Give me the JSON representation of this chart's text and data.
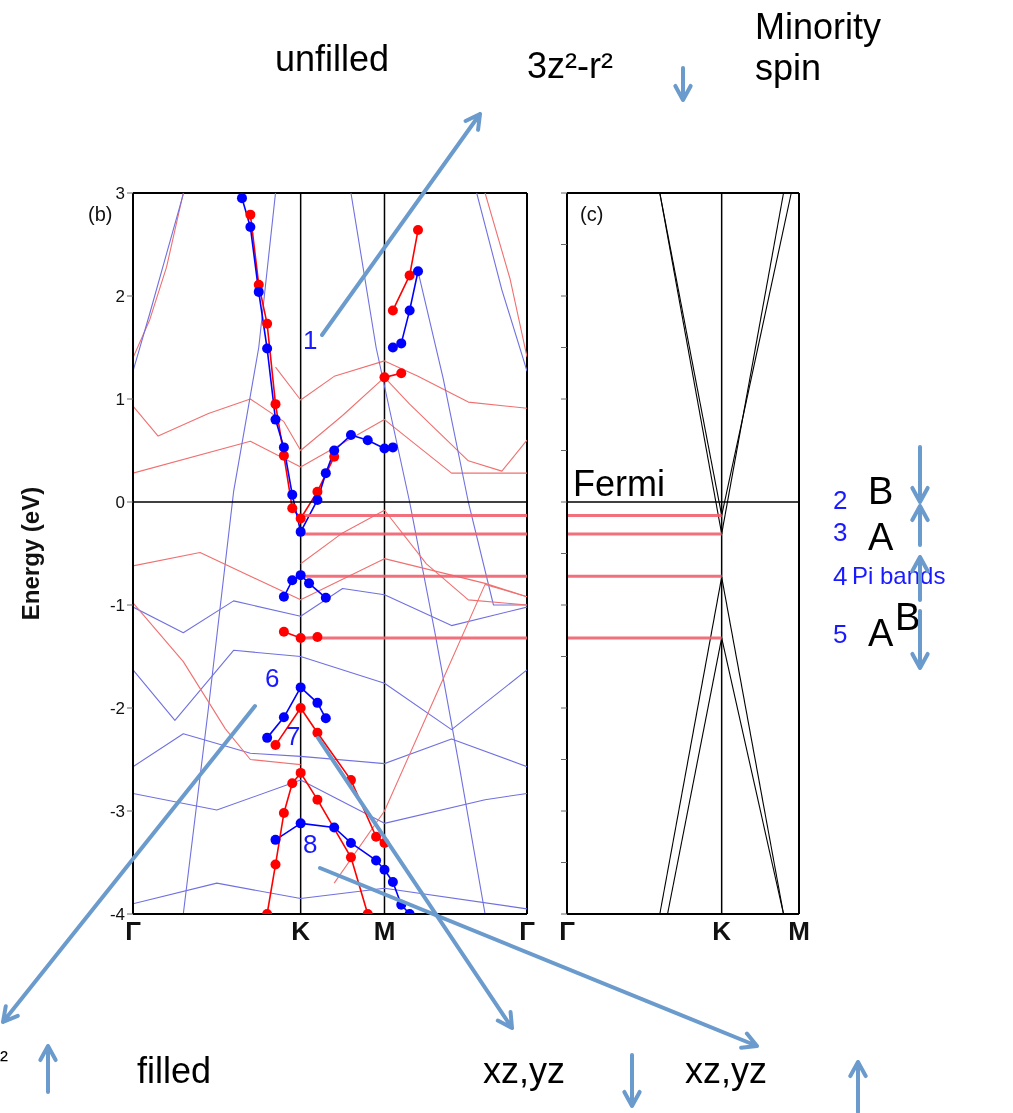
{
  "chart_data": [
    {
      "type": "line",
      "title": "(b)",
      "ylabel": "Energy (eV)",
      "categories": [
        "Γ",
        null,
        null,
        null,
        null,
        null,
        null,
        null,
        null,
        null,
        null,
        null,
        null,
        null,
        null,
        null,
        null,
        null,
        null,
        null,
        "K",
        null,
        null,
        null,
        null,
        null,
        null,
        null,
        null,
        null,
        "M",
        null,
        null,
        null,
        null,
        null,
        null,
        null,
        null,
        null,
        null,
        null,
        null,
        null,
        null,
        null,
        null,
        "Γ"
      ],
      "ylim": [
        -4,
        3
      ],
      "yticks": [
        -4,
        -3,
        -2,
        -1,
        0,
        1,
        2,
        3
      ],
      "grid": "x",
      "ref_lines": [
        {
          "axis": "y",
          "value": 0
        },
        {
          "axis": "y",
          "value": -0.13,
          "color": "#f0606e"
        },
        {
          "axis": "y",
          "value": -0.31,
          "color": "#f0606e"
        },
        {
          "axis": "y",
          "value": -0.72,
          "color": "#f0606e"
        },
        {
          "axis": "y",
          "value": -1.32,
          "color": "#f0606e"
        }
      ],
      "series": [
        {
          "color": "#f07070",
          "values": [
            1.4,
            null,
            1.77,
            null,
            2.28,
            null,
            3,
            null,
            null,
            null,
            null,
            null,
            null,
            null,
            null,
            null,
            null,
            null,
            null,
            null,
            null,
            null,
            null,
            null,
            null,
            null,
            null,
            null,
            null,
            null,
            null,
            null,
            null,
            null,
            null,
            null,
            null,
            null,
            null,
            null,
            null,
            null,
            null,
            null,
            null,
            null,
            null,
            null
          ]
        },
        {
          "color": "#f07070",
          "values": [
            null,
            null,
            null,
            null,
            null,
            null,
            null,
            null,
            null,
            null,
            null,
            null,
            null,
            null,
            null,
            null,
            null,
            null,
            null,
            null,
            null,
            null,
            null,
            null,
            null,
            null,
            null,
            null,
            null,
            null,
            null,
            null,
            null,
            null,
            null,
            null,
            null,
            null,
            null,
            null,
            null,
            null,
            3,
            null,
            null,
            2.16,
            null,
            1.41
          ]
        },
        {
          "color": "#7070e0",
          "values": [
            1.27,
            null,
            1.83,
            null,
            null,
            null,
            2.99,
            null,
            null,
            null,
            null,
            null,
            null,
            null,
            null,
            null,
            null,
            null,
            null,
            null,
            null,
            null,
            null,
            null,
            null,
            null,
            null,
            null,
            null,
            null,
            null,
            null,
            null,
            null,
            null,
            null,
            null,
            null,
            null,
            null,
            null,
            null,
            null,
            null,
            null,
            null,
            null,
            null
          ]
        },
        {
          "color": "#7070e0",
          "values": [
            null,
            null,
            null,
            null,
            null,
            null,
            null,
            null,
            null,
            null,
            null,
            null,
            null,
            null,
            null,
            null,
            null,
            null,
            null,
            null,
            null,
            null,
            null,
            null,
            null,
            null,
            null,
            null,
            null,
            null,
            null,
            null,
            null,
            null,
            null,
            null,
            null,
            null,
            null,
            null,
            null,
            3,
            null,
            null,
            2.06,
            null,
            null,
            1.27
          ]
        },
        {
          "color": "#f07070",
          "values": [
            null,
            null,
            null,
            null,
            null,
            null,
            null,
            null,
            null,
            null,
            null,
            null,
            null,
            null,
            null,
            null,
            null,
            1.31,
            null,
            null,
            0.99,
            null,
            null,
            null,
            1.22,
            null,
            null,
            null,
            null,
            null,
            1.37,
            null,
            null,
            null,
            1.22,
            null,
            null,
            null,
            null,
            null,
            0.97,
            null,
            null,
            null,
            null,
            null,
            null,
            0.91
          ]
        },
        {
          "color": "#f07070",
          "values": [
            0.93,
            null,
            null,
            0.64,
            null,
            null,
            null,
            null,
            null,
            0.86,
            null,
            null,
            null,
            null,
            1.0,
            null,
            null,
            null,
            0.78,
            null,
            0.5,
            null,
            null,
            null,
            null,
            0.84,
            null,
            null,
            null,
            null,
            1.21,
            null,
            null,
            0.95,
            null,
            null,
            null,
            null,
            null,
            null,
            0.4,
            null,
            null,
            null,
            0.3,
            null,
            null,
            0.6
          ]
        },
        {
          "color": "#f07070",
          "values": [
            0.28,
            null,
            null,
            null,
            null,
            null,
            null,
            null,
            null,
            null,
            null,
            null,
            null,
            null,
            0.59,
            null,
            null,
            null,
            null,
            null,
            0.34,
            null,
            null,
            null,
            null,
            null,
            null,
            null,
            null,
            null,
            0.8,
            null,
            null,
            null,
            null,
            null,
            null,
            null,
            0.28,
            null,
            null,
            null,
            null,
            null,
            null,
            null,
            null,
            0.28
          ]
        },
        {
          "color": "#7070e0",
          "values": [
            null,
            null,
            null,
            null,
            null,
            null,
            -4,
            null,
            null,
            -2,
            null,
            null,
            0.1,
            null,
            null,
            1.5,
            null,
            3,
            null,
            null,
            null,
            null,
            null,
            null,
            null,
            null,
            null,
            null,
            null,
            null,
            null,
            null,
            null,
            null,
            null,
            null,
            null,
            null,
            null,
            null,
            null,
            null,
            null,
            null,
            null,
            null,
            null,
            null
          ]
        },
        {
          "color": "#7070e0",
          "values": [
            null,
            null,
            null,
            null,
            null,
            null,
            null,
            null,
            null,
            null,
            null,
            null,
            null,
            null,
            null,
            null,
            null,
            null,
            null,
            null,
            null,
            null,
            null,
            null,
            null,
            null,
            3,
            null,
            null,
            1.5,
            null,
            null,
            null,
            0,
            null,
            null,
            -1.26,
            null,
            null,
            -2.6,
            null,
            null,
            -4,
            null,
            null,
            null,
            null,
            null
          ]
        },
        {
          "color": "#7070e0",
          "values": [
            null,
            null,
            null,
            null,
            null,
            null,
            null,
            null,
            null,
            null,
            null,
            null,
            null,
            null,
            null,
            null,
            null,
            null,
            null,
            null,
            null,
            null,
            null,
            null,
            null,
            null,
            null,
            null,
            null,
            null,
            null,
            null,
            null,
            null,
            2.24,
            null,
            null,
            1.2,
            null,
            null,
            0,
            null,
            null,
            -1,
            null,
            null,
            null,
            -1
          ]
        },
        {
          "color": "#7070e0",
          "values": [
            -1.02,
            null,
            null,
            null,
            null,
            null,
            -1.27,
            null,
            null,
            null,
            null,
            null,
            -0.96,
            null,
            null,
            null,
            null,
            null,
            null,
            null,
            -1.11,
            null,
            null,
            null,
            null,
            -0.84,
            null,
            null,
            null,
            null,
            -0.9,
            null,
            null,
            null,
            null,
            null,
            null,
            null,
            -1.2,
            null,
            null,
            null,
            null,
            null,
            null,
            null,
            null,
            -1.02
          ]
        },
        {
          "color": "#7070e0",
          "values": [
            -1.63,
            null,
            null,
            null,
            null,
            -2.12,
            null,
            null,
            null,
            null,
            null,
            null,
            -1.44,
            null,
            null,
            null,
            null,
            null,
            null,
            null,
            -1.5,
            null,
            null,
            null,
            null,
            null,
            null,
            null,
            null,
            null,
            -1.76,
            null,
            null,
            null,
            null,
            null,
            null,
            null,
            -2.21,
            null,
            null,
            null,
            null,
            null,
            null,
            null,
            null,
            -1.63
          ]
        },
        {
          "color": "#7070e0",
          "values": [
            -2.57,
            null,
            null,
            null,
            null,
            null,
            -2.25,
            null,
            null,
            null,
            null,
            null,
            null,
            null,
            -2.44,
            null,
            null,
            null,
            null,
            null,
            -2.47,
            null,
            null,
            null,
            null,
            null,
            null,
            null,
            null,
            null,
            -2.54,
            null,
            null,
            null,
            null,
            null,
            null,
            null,
            -2.3,
            null,
            null,
            null,
            null,
            null,
            null,
            null,
            null,
            -2.57
          ]
        },
        {
          "color": "#7070e0",
          "values": [
            -2.83,
            null,
            null,
            null,
            null,
            null,
            null,
            null,
            null,
            null,
            -2.99,
            null,
            null,
            null,
            null,
            null,
            null,
            null,
            null,
            null,
            -2.7,
            null,
            null,
            null,
            null,
            null,
            null,
            null,
            null,
            null,
            -3.12,
            null,
            null,
            null,
            null,
            null,
            null,
            null,
            null,
            null,
            null,
            null,
            -2.89,
            null,
            null,
            null,
            null,
            -2.83
          ]
        },
        {
          "color": "#7070e0",
          "values": [
            -3.9,
            null,
            null,
            null,
            null,
            null,
            null,
            null,
            null,
            null,
            -3.7,
            null,
            null,
            null,
            null,
            null,
            null,
            null,
            null,
            null,
            -3.85,
            null,
            null,
            null,
            null,
            null,
            null,
            null,
            null,
            null,
            -3.75,
            null,
            null,
            null,
            null,
            null,
            null,
            null,
            null,
            null,
            null,
            null,
            null,
            null,
            null,
            null,
            null,
            -3.95
          ]
        },
        {
          "color": "#f07070",
          "values": [
            -0.62,
            null,
            null,
            null,
            null,
            null,
            null,
            null,
            -0.49,
            null,
            null,
            null,
            null,
            null,
            null,
            null,
            null,
            null,
            null,
            null,
            -0.95,
            null,
            null,
            null,
            null,
            null,
            null,
            null,
            null,
            null,
            -0.55,
            null,
            null,
            null,
            null,
            null,
            null,
            null,
            null,
            null,
            null,
            null,
            -0.79,
            null,
            null,
            null,
            null,
            -0.92
          ]
        },
        {
          "color": "#f07070",
          "values": [
            -0.98,
            null,
            null,
            null,
            null,
            null,
            -1.55,
            null,
            null,
            null,
            null,
            -2.2,
            null,
            null,
            -2.5,
            null,
            null,
            null,
            null,
            null,
            -2.55,
            null,
            null,
            null,
            null,
            null,
            null,
            null,
            null,
            null,
            null,
            null,
            null,
            null,
            null,
            null,
            null,
            null,
            null,
            null,
            null,
            null,
            null,
            null,
            null,
            null,
            null,
            null
          ]
        },
        {
          "color": "#f07070",
          "values": [
            null,
            null,
            null,
            null,
            null,
            null,
            null,
            null,
            null,
            null,
            null,
            null,
            null,
            null,
            null,
            null,
            null,
            null,
            null,
            null,
            -0.6,
            null,
            null,
            null,
            null,
            -0.3,
            null,
            null,
            null,
            null,
            -0.08,
            null,
            null,
            null,
            null,
            -0.6,
            null,
            null,
            null,
            null,
            -0.95,
            null,
            null,
            null,
            null,
            null,
            null,
            -1
          ]
        },
        {
          "color": "#f07070",
          "values": [
            null,
            null,
            null,
            null,
            null,
            null,
            null,
            null,
            null,
            null,
            null,
            null,
            null,
            null,
            null,
            null,
            null,
            null,
            null,
            null,
            null,
            null,
            null,
            null,
            -3.7,
            null,
            null,
            null,
            null,
            null,
            -3,
            null,
            null,
            null,
            null,
            null,
            -1.9,
            null,
            null,
            null,
            null,
            null,
            -0.8,
            null,
            null,
            null,
            null,
            -0.92
          ]
        },
        {
          "color": "#ff0000",
          "marker": "circle",
          "values": [
            null,
            null,
            null,
            null,
            null,
            null,
            null,
            null,
            null,
            null,
            null,
            null,
            null,
            null,
            2.79,
            2.11,
            1.73,
            0.95,
            0.45,
            -0.06,
            -0.16,
            null,
            0.1,
            null,
            0.44,
            null,
            null,
            null,
            null,
            null,
            null,
            null,
            null,
            null,
            null,
            null,
            null,
            null,
            null,
            null,
            null,
            null,
            null,
            null,
            null,
            null,
            null,
            null
          ]
        },
        {
          "color": "#ff0000",
          "marker": "circle",
          "values": [
            null,
            null,
            null,
            null,
            null,
            null,
            null,
            null,
            null,
            null,
            null,
            null,
            null,
            null,
            null,
            null,
            null,
            null,
            null,
            null,
            null,
            null,
            null,
            null,
            null,
            null,
            null,
            null,
            null,
            null,
            1.21,
            null,
            1.25,
            null,
            null,
            null,
            null,
            null,
            null,
            null,
            null,
            null,
            null,
            null,
            null,
            null,
            null,
            null
          ]
        },
        {
          "color": "#ff0000",
          "marker": "circle",
          "values": [
            null,
            null,
            null,
            null,
            null,
            null,
            null,
            null,
            null,
            null,
            null,
            null,
            null,
            null,
            null,
            null,
            null,
            null,
            null,
            null,
            null,
            null,
            null,
            null,
            null,
            null,
            null,
            null,
            null,
            null,
            null,
            1.86,
            null,
            2.2,
            2.64,
            null,
            null,
            null,
            null,
            null,
            null,
            null,
            null,
            null,
            null,
            null,
            null,
            null
          ]
        },
        {
          "color": "#0000ff",
          "marker": "circle",
          "values": [
            null,
            null,
            null,
            null,
            null,
            null,
            null,
            null,
            null,
            null,
            null,
            null,
            null,
            2.95,
            2.67,
            2.04,
            1.49,
            0.8,
            0.53,
            0.07,
            -0.29,
            null,
            0.02,
            0.28,
            0.5,
            null,
            0.65,
            null,
            0.6,
            null,
            0.52,
            0.53,
            null,
            null,
            null,
            null,
            null,
            null,
            null,
            null,
            null,
            null,
            null,
            null,
            null,
            null,
            null,
            null
          ]
        },
        {
          "color": "#0000ff",
          "marker": "circle",
          "values": [
            null,
            null,
            null,
            null,
            null,
            null,
            null,
            null,
            null,
            null,
            null,
            null,
            null,
            null,
            null,
            null,
            null,
            null,
            null,
            null,
            null,
            null,
            null,
            null,
            null,
            null,
            null,
            null,
            null,
            null,
            null,
            1.5,
            1.54,
            1.86,
            2.24,
            null,
            null,
            null,
            null,
            null,
            null,
            null,
            null,
            null,
            null,
            null,
            null,
            null
          ]
        },
        {
          "color": "#0000ff",
          "marker": "circle",
          "values": [
            null,
            null,
            null,
            null,
            null,
            null,
            null,
            null,
            null,
            null,
            null,
            null,
            null,
            null,
            null,
            null,
            null,
            null,
            -0.92,
            -0.76,
            -0.71,
            -0.79,
            null,
            -0.93,
            null,
            null,
            null,
            null,
            null,
            null,
            null,
            null,
            null,
            null,
            null,
            null,
            null,
            null,
            null,
            null,
            null,
            null,
            null,
            null,
            null,
            null,
            null,
            null
          ]
        },
        {
          "color": "#ff0000",
          "marker": "circle",
          "values": [
            null,
            null,
            null,
            null,
            null,
            null,
            null,
            null,
            null,
            null,
            null,
            null,
            null,
            null,
            null,
            null,
            null,
            null,
            -1.26,
            null,
            -1.32,
            null,
            -1.31,
            null,
            null,
            null,
            null,
            null,
            null,
            null,
            null,
            null,
            null,
            null,
            null,
            null,
            null,
            null,
            null,
            null,
            null,
            null,
            null,
            null,
            null,
            null,
            null,
            null
          ]
        },
        {
          "color": "#0000ff",
          "marker": "circle",
          "values": [
            null,
            null,
            null,
            null,
            null,
            null,
            null,
            null,
            null,
            null,
            null,
            null,
            null,
            null,
            null,
            null,
            -2.29,
            null,
            -2.09,
            null,
            -1.8,
            null,
            -1.95,
            -2.1,
            null,
            null,
            null,
            null,
            null,
            null,
            null,
            null,
            null,
            null,
            null,
            null,
            null,
            null,
            null,
            null,
            null,
            null,
            null,
            null,
            null,
            null,
            null,
            null
          ]
        },
        {
          "color": "#ff0000",
          "marker": "circle",
          "values": [
            null,
            null,
            null,
            null,
            null,
            null,
            null,
            null,
            null,
            null,
            null,
            null,
            null,
            null,
            null,
            null,
            null,
            -2.36,
            null,
            null,
            -2,
            null,
            -2.24,
            null,
            null,
            null,
            -2.7,
            null,
            null,
            -3.25,
            -3.31,
            null,
            null,
            null,
            null,
            null,
            null,
            null,
            null,
            null,
            null,
            null,
            null,
            null,
            null,
            null,
            null,
            null
          ]
        },
        {
          "color": "#0000ff",
          "marker": "circle",
          "values": [
            null,
            null,
            null,
            null,
            null,
            null,
            null,
            null,
            null,
            null,
            null,
            null,
            null,
            null,
            null,
            null,
            null,
            -3.28,
            null,
            null,
            -3.12,
            null,
            null,
            null,
            -3.16,
            null,
            -3.31,
            null,
            null,
            -3.48,
            -3.57,
            -3.69,
            -3.91,
            -4,
            null,
            null,
            null,
            null,
            null,
            null,
            null,
            null,
            null,
            null,
            null,
            null,
            null,
            null
          ]
        },
        {
          "color": "#ff0000",
          "marker": "circle",
          "values": [
            null,
            null,
            null,
            null,
            null,
            null,
            null,
            null,
            null,
            null,
            null,
            null,
            null,
            null,
            null,
            null,
            -4,
            -3.52,
            -3.02,
            -2.73,
            -2.63,
            null,
            -2.89,
            null,
            null,
            null,
            -3.45,
            null,
            -4,
            null,
            null,
            null,
            null,
            null,
            null,
            null,
            null,
            null,
            null,
            null,
            null,
            null,
            null,
            null,
            null,
            null,
            null,
            null
          ]
        }
      ],
      "annotations": [
        "1",
        "6",
        "7",
        "8",
        "unfilled",
        "3z²-r²",
        "Minority spin",
        "filled",
        "xz,yz",
        "xz,yz",
        "²"
      ]
    },
    {
      "type": "line",
      "title": "(c)",
      "categories": [
        "Γ",
        null,
        null,
        null,
        null,
        null,
        null,
        null,
        null,
        null,
        null,
        null,
        null,
        null,
        null,
        null,
        null,
        null,
        null,
        null,
        "K",
        null,
        null,
        null,
        null,
        null,
        null,
        null,
        null,
        null,
        "M"
      ],
      "ylim": [
        -4,
        3
      ],
      "yticks": [
        -4,
        -3.5,
        -3,
        -2.5,
        -2,
        -1.5,
        -1,
        -0.5,
        0,
        0.5,
        1,
        1.5,
        2,
        2.5,
        3
      ],
      "grid": "x",
      "tick_labels": "x",
      "ref_lines": [
        {
          "axis": "y",
          "value": 0,
          "label": "Fermi"
        },
        {
          "axis": "y",
          "value": -0.13,
          "color": "#f0606e"
        },
        {
          "axis": "y",
          "value": -0.31,
          "color": "#f0606e"
        },
        {
          "axis": "y",
          "value": -0.72,
          "color": "#f0606e"
        },
        {
          "axis": "y",
          "value": -1.32,
          "color": "#f0606e"
        }
      ],
      "series": [
        {
          "color": "#000000",
          "values": [
            null,
            null,
            null,
            null,
            null,
            null,
            null,
            null,
            null,
            null,
            null,
            null,
            3,
            null,
            null,
            null,
            null,
            null,
            null,
            null,
            -0.13,
            null,
            null,
            null,
            null,
            null,
            null,
            null,
            null,
            null,
            null
          ]
        },
        {
          "color": "#000000",
          "values": [
            null,
            null,
            null,
            null,
            null,
            null,
            null,
            null,
            null,
            null,
            null,
            null,
            3,
            null,
            null,
            null,
            null,
            null,
            null,
            null,
            -0.31,
            null,
            null,
            null,
            null,
            null,
            null,
            null,
            null,
            null,
            null
          ]
        },
        {
          "color": "#000000",
          "values": [
            null,
            null,
            null,
            null,
            null,
            null,
            null,
            null,
            null,
            null,
            null,
            null,
            null,
            null,
            null,
            null,
            null,
            null,
            null,
            null,
            -0.31,
            null,
            null,
            null,
            null,
            null,
            null,
            null,
            3,
            null,
            null
          ]
        },
        {
          "color": "#000000",
          "values": [
            null,
            null,
            null,
            null,
            null,
            null,
            null,
            null,
            null,
            null,
            null,
            null,
            null,
            null,
            null,
            null,
            null,
            null,
            null,
            null,
            -0.13,
            null,
            null,
            null,
            null,
            null,
            null,
            null,
            null,
            3,
            null
          ]
        },
        {
          "color": "#000000",
          "values": [
            null,
            null,
            null,
            null,
            null,
            null,
            null,
            null,
            null,
            null,
            null,
            null,
            -4,
            null,
            null,
            null,
            null,
            null,
            null,
            null,
            -0.73,
            null,
            null,
            null,
            null,
            null,
            null,
            null,
            null,
            null,
            null
          ]
        },
        {
          "color": "#000000",
          "values": [
            null,
            null,
            null,
            null,
            null,
            null,
            null,
            null,
            null,
            null,
            null,
            null,
            null,
            -4,
            null,
            null,
            null,
            null,
            null,
            null,
            -1.32,
            null,
            null,
            null,
            null,
            null,
            null,
            null,
            null,
            null,
            null
          ]
        },
        {
          "color": "#000000",
          "values": [
            null,
            null,
            null,
            null,
            null,
            null,
            null,
            null,
            null,
            null,
            null,
            null,
            null,
            null,
            null,
            null,
            null,
            null,
            null,
            null,
            -0.73,
            null,
            null,
            null,
            null,
            null,
            null,
            null,
            -4,
            null,
            null
          ]
        },
        {
          "color": "#000000",
          "values": [
            null,
            null,
            null,
            null,
            null,
            null,
            null,
            null,
            null,
            null,
            null,
            null,
            null,
            null,
            null,
            null,
            null,
            null,
            null,
            null,
            -1.32,
            null,
            null,
            null,
            null,
            null,
            null,
            null,
            -4,
            null,
            null
          ]
        }
      ],
      "annotations": [
        "2",
        "3",
        "4",
        "Pi bands",
        "5",
        "B",
        "A",
        "A",
        "B"
      ]
    }
  ]
}
